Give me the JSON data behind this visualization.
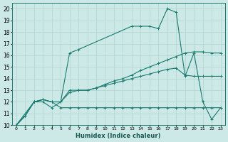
{
  "xlabel": "Humidex (Indice chaleur)",
  "xlim": [
    -0.5,
    23.5
  ],
  "ylim": [
    10,
    20.5
  ],
  "xticks": [
    0,
    1,
    2,
    3,
    4,
    5,
    6,
    7,
    8,
    9,
    10,
    11,
    12,
    13,
    14,
    15,
    16,
    17,
    18,
    19,
    20,
    21,
    22,
    23
  ],
  "yticks": [
    10,
    11,
    12,
    13,
    14,
    15,
    16,
    17,
    18,
    19,
    20
  ],
  "bg_color": "#cce9e7",
  "line_color": "#1a7a6e",
  "grid_color": "#aed4d1",
  "lines": [
    {
      "x": [
        0,
        2,
        3,
        4,
        5,
        6,
        7,
        13,
        14,
        15,
        16,
        17,
        18,
        19,
        20,
        21,
        22,
        23
      ],
      "y": [
        10,
        12,
        12,
        11.5,
        12,
        16.2,
        16.5,
        18.5,
        18.5,
        18.5,
        18.3,
        20.0,
        19.7,
        14.2,
        16.2,
        12.0,
        10.5,
        11.5
      ]
    },
    {
      "x": [
        0,
        1,
        2,
        3,
        4,
        5,
        6,
        7,
        8,
        9,
        10,
        11,
        12,
        13,
        14,
        15,
        16,
        17,
        18,
        19,
        20,
        21,
        22,
        23
      ],
      "y": [
        10,
        10.8,
        12.0,
        12.2,
        12.0,
        12.0,
        13.0,
        13.0,
        13.0,
        13.2,
        13.5,
        13.8,
        14.0,
        14.3,
        14.7,
        15.0,
        15.3,
        15.6,
        15.9,
        16.2,
        16.3,
        16.3,
        16.2,
        16.2
      ]
    },
    {
      "x": [
        0,
        1,
        2,
        3,
        4,
        5,
        6,
        7,
        8,
        9,
        10,
        11,
        12,
        13,
        14,
        15,
        16,
        17,
        18,
        19,
        20,
        21,
        22,
        23
      ],
      "y": [
        10,
        10.8,
        12.0,
        12.2,
        12.0,
        12.0,
        12.8,
        13.0,
        13.0,
        13.2,
        13.4,
        13.6,
        13.8,
        14.0,
        14.2,
        14.4,
        14.6,
        14.8,
        14.9,
        14.3,
        14.2,
        14.2,
        14.2,
        14.2
      ]
    },
    {
      "x": [
        0,
        1,
        2,
        3,
        4,
        5,
        6,
        7,
        8,
        9,
        10,
        11,
        12,
        13,
        14,
        15,
        16,
        17,
        18,
        19,
        20,
        21,
        22,
        23
      ],
      "y": [
        10,
        10.8,
        12.0,
        12.2,
        12.0,
        11.5,
        11.5,
        11.5,
        11.5,
        11.5,
        11.5,
        11.5,
        11.5,
        11.5,
        11.5,
        11.5,
        11.5,
        11.5,
        11.5,
        11.5,
        11.5,
        11.5,
        11.5,
        11.5
      ]
    }
  ]
}
